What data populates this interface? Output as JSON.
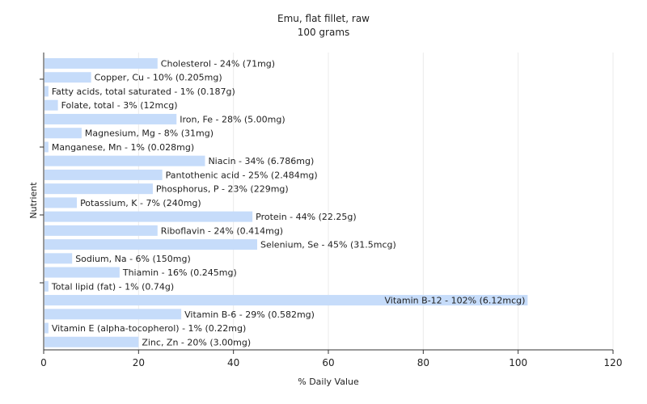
{
  "chart_data": {
    "type": "bar",
    "orientation": "horizontal",
    "title": "Emu, flat fillet, raw",
    "subtitle": "100 grams",
    "xlabel": "% Daily Value",
    "ylabel": "Nutrient",
    "xlim": [
      0,
      120
    ],
    "xticks": [
      0,
      20,
      40,
      60,
      80,
      100,
      120
    ],
    "grid": true,
    "bar_color": "#c6dcfa",
    "grid_color": "#ebebeb",
    "categories": [
      "Cholesterol - 24% (71mg)",
      "Copper, Cu - 10% (0.205mg)",
      "Fatty acids, total saturated - 1% (0.187g)",
      "Folate, total - 3% (12mcg)",
      "Iron, Fe - 28% (5.00mg)",
      "Magnesium, Mg - 8% (31mg)",
      "Manganese, Mn - 1% (0.028mg)",
      "Niacin - 34% (6.786mg)",
      "Pantothenic acid - 25% (2.484mg)",
      "Phosphorus, P - 23% (229mg)",
      "Potassium, K - 7% (240mg)",
      "Protein - 44% (22.25g)",
      "Riboflavin - 24% (0.414mg)",
      "Selenium, Se - 45% (31.5mcg)",
      "Sodium, Na - 6% (150mg)",
      "Thiamin - 16% (0.245mg)",
      "Total lipid (fat) - 1% (0.74g)",
      "Vitamin B-12 - 102% (6.12mcg)",
      "Vitamin B-6 - 29% (0.582mg)",
      "Vitamin E (alpha-tocopherol) - 1% (0.22mg)",
      "Zinc, Zn - 20% (3.00mg)"
    ],
    "values": [
      24,
      10,
      1,
      3,
      28,
      8,
      1,
      34,
      25,
      23,
      7,
      44,
      24,
      45,
      6,
      16,
      1,
      102,
      29,
      1,
      20
    ]
  }
}
